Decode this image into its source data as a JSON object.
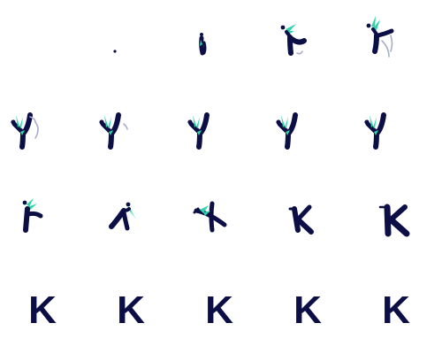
{
  "sheet": {
    "background": "#ffffff",
    "frame_count": 20,
    "columns": 5,
    "rows": 4
  },
  "colors": {
    "body": "#0b0f45",
    "accent": "#2fd5a9",
    "swoosh": "#a9adc9"
  },
  "final_letter": "K",
  "frames": [
    {
      "pose": "empty"
    },
    {
      "pose": "dot"
    },
    {
      "pose": "sprout"
    },
    {
      "pose": "leap-open"
    },
    {
      "pose": "leap-spin"
    },
    {
      "pose": "y-swirl"
    },
    {
      "pose": "y-fade"
    },
    {
      "pose": "y-stand"
    },
    {
      "pose": "y-stand"
    },
    {
      "pose": "y-stand"
    },
    {
      "pose": "hook"
    },
    {
      "pose": "tilt"
    },
    {
      "pose": "cross"
    },
    {
      "pose": "k-rough"
    },
    {
      "pose": "k-brush"
    },
    {
      "pose": "k-final"
    },
    {
      "pose": "k-final"
    },
    {
      "pose": "k-final"
    },
    {
      "pose": "k-final"
    },
    {
      "pose": "k-final"
    }
  ]
}
